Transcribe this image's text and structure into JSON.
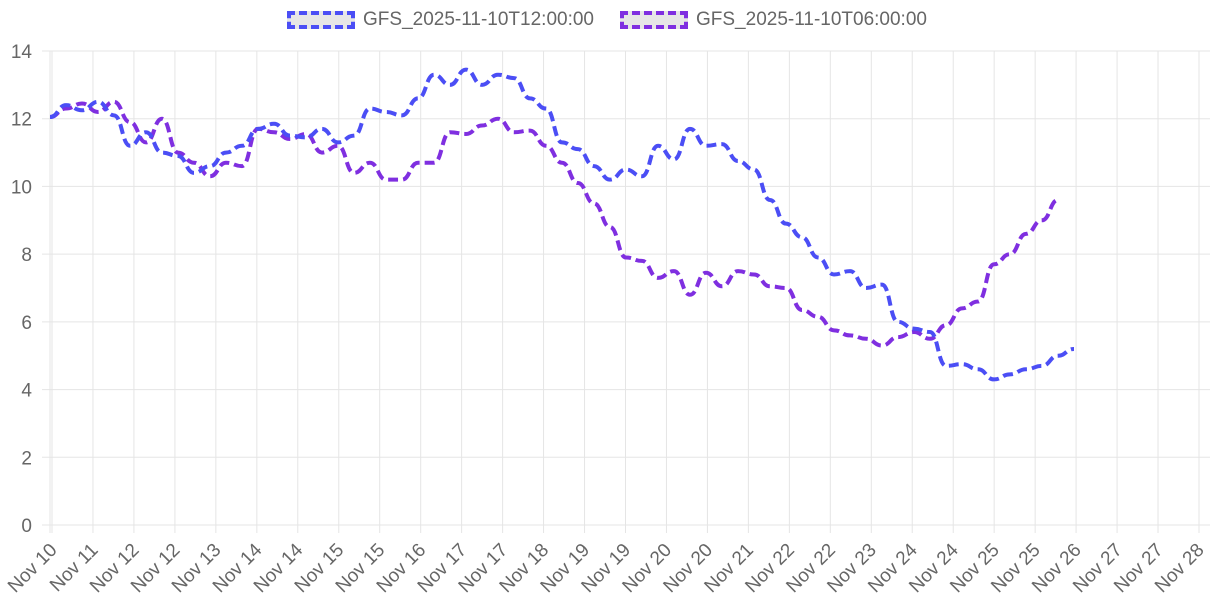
{
  "chart_data": {
    "type": "line",
    "title": "",
    "xlabel": "",
    "ylabel": "",
    "ylim": [
      0,
      14
    ],
    "yticks": [
      0,
      2,
      4,
      6,
      8,
      10,
      12,
      14
    ],
    "grid": true,
    "legend_position": "top",
    "x_tick_labels": [
      "Nov 10",
      "Nov 11",
      "Nov 12",
      "Nov 12",
      "Nov 13",
      "Nov 14",
      "Nov 14",
      "Nov 15",
      "Nov 15",
      "Nov 16",
      "Nov 17",
      "Nov 17",
      "Nov 18",
      "Nov 19",
      "Nov 19",
      "Nov 20",
      "Nov 20",
      "Nov 21",
      "Nov 22",
      "Nov 22",
      "Nov 23",
      "Nov 24",
      "Nov 24",
      "Nov 25",
      "Nov 25",
      "Nov 26",
      "Nov 27",
      "Nov 27",
      "Nov 28"
    ],
    "x_step_hours": 6,
    "series": [
      {
        "name": "GFS_2025-11-10T12:00:00",
        "color": "#4b4ef5",
        "style": "dashed",
        "values": [
          12.05,
          12.4,
          12.25,
          12.5,
          12.1,
          11.2,
          11.6,
          11.0,
          10.9,
          10.4,
          10.6,
          11.0,
          11.2,
          11.7,
          11.85,
          11.5,
          11.45,
          11.7,
          11.3,
          11.5,
          12.3,
          12.2,
          12.1,
          12.6,
          13.3,
          13.0,
          13.45,
          13.0,
          13.3,
          13.2,
          12.6,
          12.3,
          11.3,
          11.1,
          10.6,
          10.2,
          10.5,
          10.3,
          11.2,
          10.8,
          11.7,
          11.2,
          11.25,
          10.75,
          10.5,
          9.6,
          8.9,
          8.5,
          7.9,
          7.4,
          7.5,
          7.0,
          7.1,
          6.0,
          5.8,
          5.7,
          4.7,
          4.75,
          4.6,
          4.3,
          4.45,
          4.6,
          4.7,
          5.0,
          5.2
        ]
      },
      {
        "name": "GFS_2025-11-10T06:00:00",
        "color": "#7f2fe0",
        "style": "dashed",
        "values": [
          12.05,
          12.3,
          12.45,
          12.2,
          12.5,
          11.9,
          11.3,
          12.0,
          11.0,
          10.7,
          10.3,
          10.7,
          10.6,
          11.7,
          11.6,
          11.4,
          11.55,
          11.0,
          11.2,
          10.4,
          10.7,
          10.2,
          10.2,
          10.7,
          10.7,
          11.6,
          11.55,
          11.8,
          12.0,
          11.6,
          11.65,
          11.2,
          10.7,
          10.1,
          9.5,
          8.8,
          7.9,
          7.8,
          7.3,
          7.5,
          6.8,
          7.45,
          7.05,
          7.5,
          7.4,
          7.05,
          7.0,
          6.35,
          6.15,
          5.75,
          5.6,
          5.5,
          5.3,
          5.55,
          5.7,
          5.5,
          5.9,
          6.4,
          6.6,
          7.7,
          8.0,
          8.6,
          9.0,
          9.6
        ]
      }
    ]
  },
  "legend": {
    "items": [
      {
        "label": "GFS_2025-11-10T12:00:00",
        "color": "#4b4ef5"
      },
      {
        "label": "GFS_2025-11-10T06:00:00",
        "color": "#7f2fe0"
      }
    ]
  },
  "colors": {
    "grid": "#e5e5e5",
    "axis_text": "#666666",
    "legend_fill": "#e6e6e6"
  }
}
